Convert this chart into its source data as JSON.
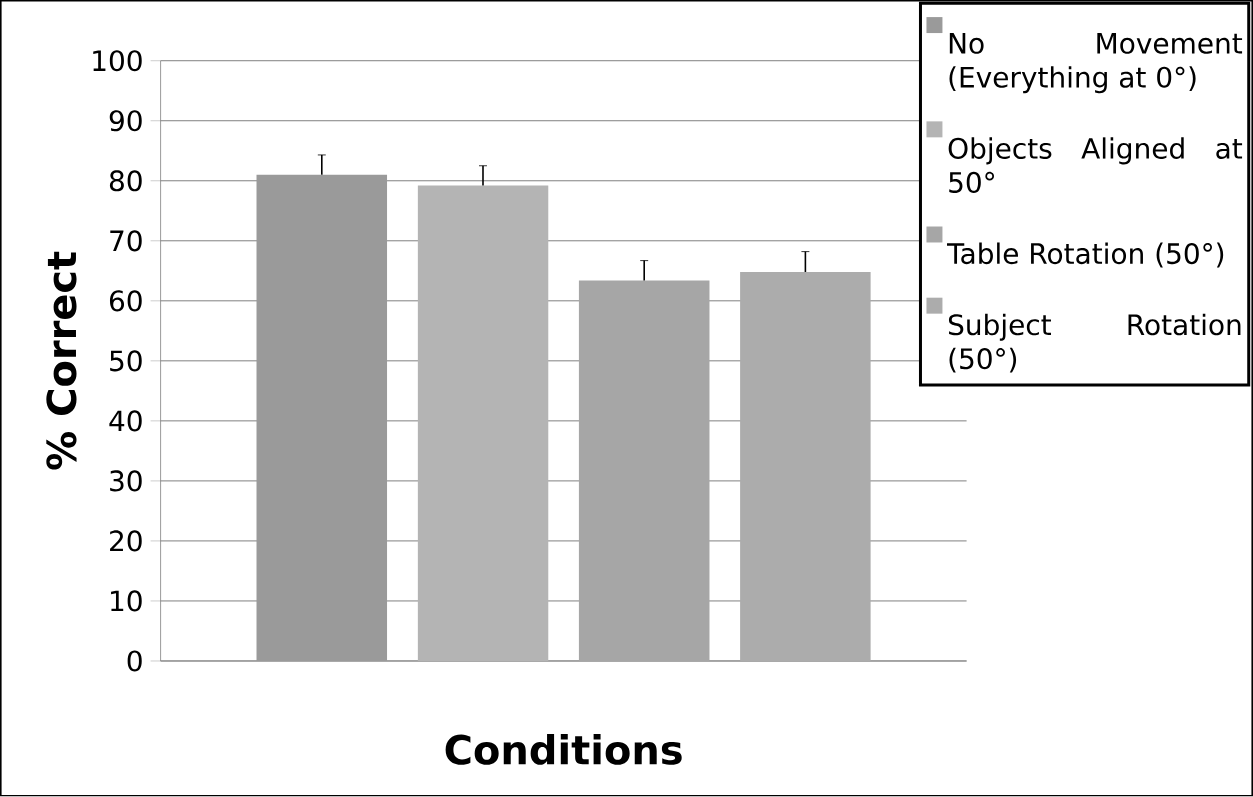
{
  "chart_data": {
    "type": "bar",
    "xlabel": "Conditions",
    "ylabel": "% Correct",
    "categories": [
      null
    ],
    "series": [
      {
        "name": "No Movement (Everything at 0°)",
        "color": "#9a9a9a",
        "values": [
          81
        ],
        "errors": [
          3.3
        ]
      },
      {
        "name": "Objects Aligned at 50°",
        "color": "#b4b4b4",
        "values": [
          79.2
        ],
        "errors": [
          3.3
        ]
      },
      {
        "name": "Table Rotation (50°)",
        "color": "#a6a6a6",
        "values": [
          63.4
        ],
        "errors": [
          3.3
        ]
      },
      {
        "name": "Subject Rotation (50°)",
        "color": "#acacac",
        "values": [
          64.8
        ],
        "errors": [
          3.4
        ]
      }
    ],
    "ylim": [
      0,
      100
    ],
    "yticks": [
      0,
      10,
      20,
      30,
      40,
      50,
      60,
      70,
      80,
      90,
      100
    ],
    "grid": "y",
    "legend": "top right"
  }
}
